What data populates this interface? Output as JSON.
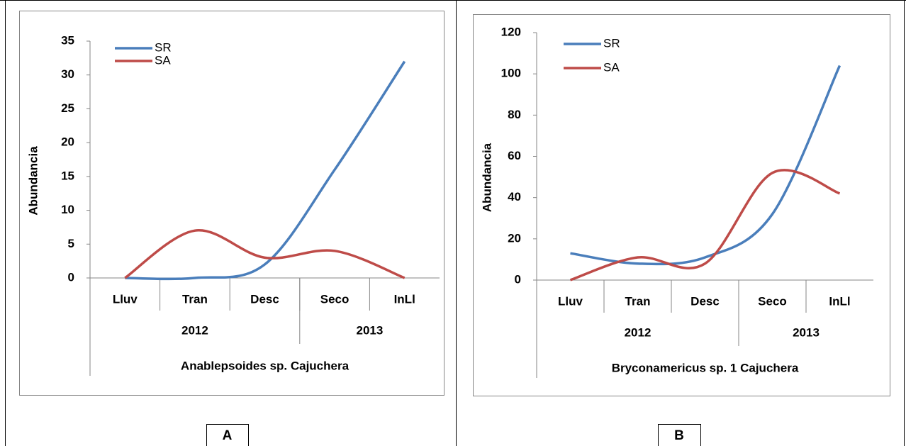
{
  "chart_data": [
    {
      "type": "line",
      "panel": "A",
      "xlabel": "Anablepsoides sp. Cajuchera",
      "ylabel": "Abundancia",
      "categories": [
        "Lluv",
        "Tran",
        "Desc",
        "Seco",
        "InLl"
      ],
      "groups": [
        {
          "label": "2012",
          "count": 3
        },
        {
          "label": "2013",
          "count": 2
        }
      ],
      "series": [
        {
          "name": "SR",
          "color": "#4a7ebb",
          "values": [
            0,
            0,
            2,
            16,
            32
          ]
        },
        {
          "name": "SA",
          "color": "#be4b48",
          "values": [
            0,
            7,
            3,
            4,
            0
          ]
        }
      ],
      "ylim": [
        0,
        35
      ],
      "yticks": [
        0,
        5,
        10,
        15,
        20,
        25,
        30,
        35
      ],
      "legend": "upper left"
    },
    {
      "type": "line",
      "panel": "B",
      "xlabel": "Bryconamericus sp. 1 Cajuchera",
      "ylabel": "Abundancia",
      "categories": [
        "Lluv",
        "Tran",
        "Desc",
        "Seco",
        "InLl"
      ],
      "groups": [
        {
          "label": "2012",
          "count": 3
        },
        {
          "label": "2013",
          "count": 2
        }
      ],
      "series": [
        {
          "name": "SR",
          "color": "#4a7ebb",
          "values": [
            13,
            8,
            11,
            32,
            104
          ]
        },
        {
          "name": "SA",
          "color": "#be4b48",
          "values": [
            0,
            11,
            8,
            52,
            42
          ]
        }
      ],
      "ylim": [
        0,
        120
      ],
      "yticks": [
        0,
        20,
        40,
        60,
        80,
        100,
        120
      ],
      "legend": "upper left"
    }
  ]
}
